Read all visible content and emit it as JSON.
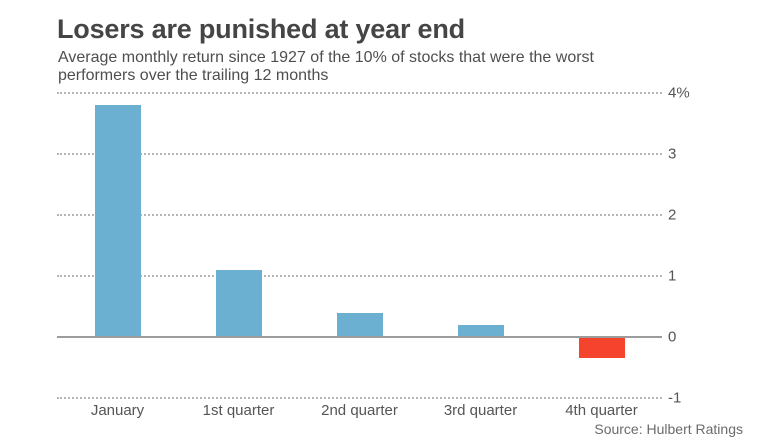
{
  "header": {
    "title": "Losers are punished at year end",
    "subtitle": "Average monthly return since 1927 of the 10% of stocks that were the worst performers over the trailing 12 months"
  },
  "chart_data": {
    "type": "bar",
    "categories": [
      "January",
      "1st quarter",
      "2nd quarter",
      "3rd quarter",
      "4th quarter"
    ],
    "values": [
      3.8,
      1.1,
      0.4,
      0.2,
      -0.35
    ],
    "title": "Losers are punished at year end",
    "xlabel": "",
    "ylabel": "",
    "ylim": [
      -1,
      4
    ],
    "yticks": [
      {
        "value": 4,
        "label": "4%"
      },
      {
        "value": 3,
        "label": "3"
      },
      {
        "value": 2,
        "label": "2"
      },
      {
        "value": 1,
        "label": "1"
      },
      {
        "value": 0,
        "label": "0"
      },
      {
        "value": -1,
        "label": "-1"
      }
    ],
    "grid": "horizontal-dotted",
    "legend": "none",
    "colors": {
      "positive": "#6cb0d1",
      "negative": "#f6432e",
      "gridline": "#b5b5b5",
      "zero_line": "#9c9c9c"
    }
  },
  "footer": {
    "source": "Source: Hulbert Ratings"
  }
}
